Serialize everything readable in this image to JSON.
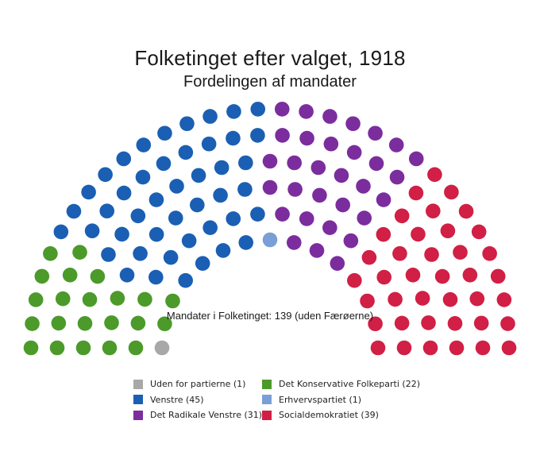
{
  "title": "Folketinget efter valget, 1918",
  "subtitle": "Fordelingen af mandater",
  "total_label": "Mandater i Folketinget: 139 (uden Færøerne)",
  "chart_data": {
    "type": "parliament",
    "total_seats": 139,
    "series": [
      {
        "name": "Uden for partierne",
        "seats": 1,
        "color": "#a8a8a8"
      },
      {
        "name": "Det Konservative Folkeparti",
        "seats": 22,
        "color": "#4c9a2a"
      },
      {
        "name": "Venstre",
        "seats": 45,
        "color": "#1a5fb4"
      },
      {
        "name": "Erhvervspartiet",
        "seats": 1,
        "color": "#7a9fd6"
      },
      {
        "name": "Det Radikale Venstre",
        "seats": 31,
        "color": "#7b2d9e"
      },
      {
        "name": "Socialdemokratiet",
        "seats": 39,
        "color": "#d11f45"
      }
    ]
  },
  "legend": {
    "col1": [
      {
        "label": "Uden for partierne (1)",
        "color": "#a8a8a8"
      },
      {
        "label": "Venstre (45)",
        "color": "#1a5fb4"
      },
      {
        "label": "Det Radikale Venstre (31)",
        "color": "#7b2d9e"
      }
    ],
    "col2": [
      {
        "label": "Det Konservative Folkeparti (22)",
        "color": "#4c9a2a"
      },
      {
        "label": "Erhvervspartiet (1)",
        "color": "#7a9fd6"
      },
      {
        "label": "Socialdemokratiet (39)",
        "color": "#d11f45"
      }
    ]
  }
}
